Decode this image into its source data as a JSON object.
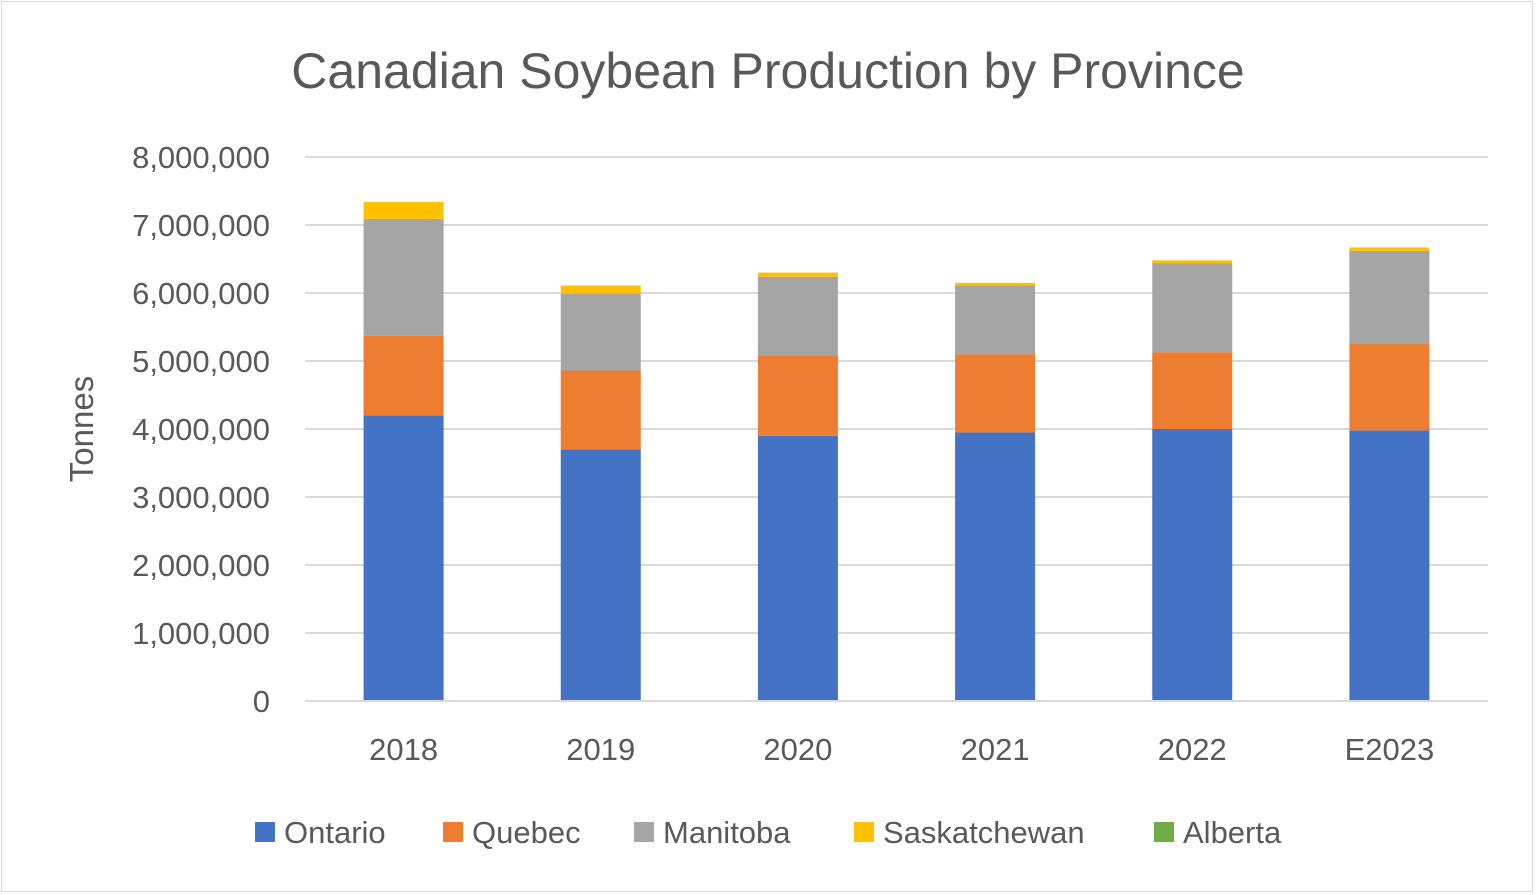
{
  "chart_data": {
    "type": "bar",
    "stacked": true,
    "title": "Canadian Soybean Production by Province",
    "xlabel": "",
    "ylabel": "Tonnes",
    "ylim": [
      0,
      8000000
    ],
    "yticks": [
      0,
      1000000,
      2000000,
      3000000,
      4000000,
      5000000,
      6000000,
      7000000,
      8000000
    ],
    "ytick_labels": [
      "0",
      "1,000,000",
      "2,000,000",
      "3,000,000",
      "4,000,000",
      "5,000,000",
      "6,000,000",
      "7,000,000",
      "8,000,000"
    ],
    "categories": [
      "2018",
      "2019",
      "2020",
      "2021",
      "2022",
      "E2023"
    ],
    "grid": true,
    "legend_position": "bottom",
    "series": [
      {
        "name": "Ontario",
        "color": "#4472C4",
        "values": [
          4200000,
          3700000,
          3900000,
          3950000,
          4000000,
          3980000
        ]
      },
      {
        "name": "Quebec",
        "color": "#ED7D31",
        "values": [
          1170000,
          1160000,
          1180000,
          1150000,
          1130000,
          1270000
        ]
      },
      {
        "name": "Manitoba",
        "color": "#A5A5A5",
        "values": [
          1720000,
          1130000,
          1160000,
          1010000,
          1310000,
          1370000
        ]
      },
      {
        "name": "Saskatchewan",
        "color": "#FFC000",
        "values": [
          250000,
          120000,
          60000,
          40000,
          40000,
          50000
        ]
      },
      {
        "name": "Alberta",
        "color": "#70AD47",
        "values": [
          0,
          0,
          0,
          0,
          0,
          0
        ]
      }
    ]
  }
}
